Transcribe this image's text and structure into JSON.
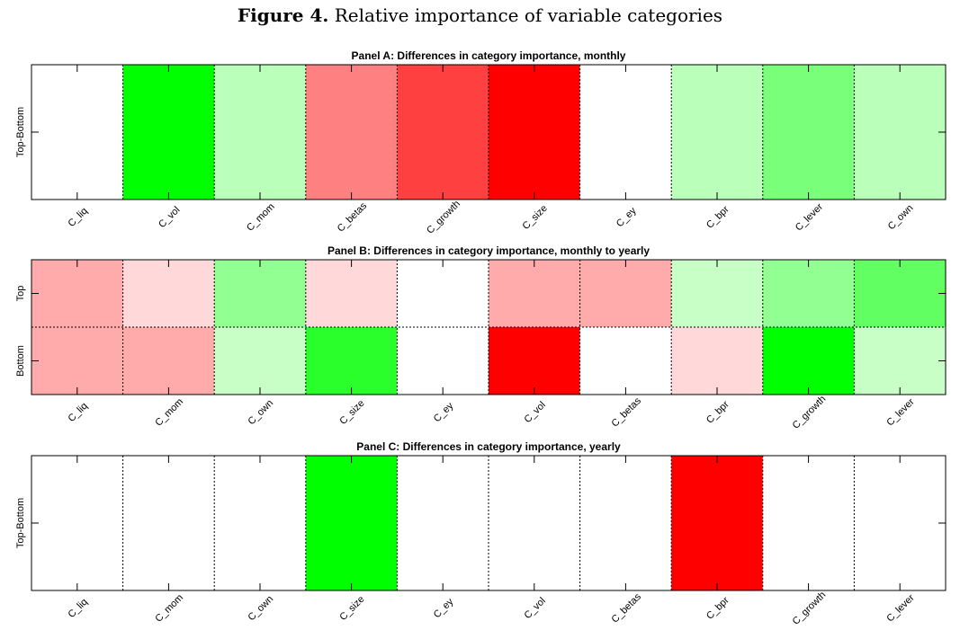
{
  "figure": {
    "label": "Figure 4.",
    "title": "Relative importance of variable categories"
  },
  "chart_data": [
    {
      "type": "heatmap",
      "title": "Panel A: Differences in category importance, monthly",
      "rows": [
        "Top-Bottom"
      ],
      "categories": [
        "C_liq",
        "C_vol",
        "C_mom",
        "C_betas",
        "C_growth",
        "C_size",
        "C_ey",
        "C_bpr",
        "C_lever",
        "C_own"
      ],
      "values": [
        [
          0,
          1.0,
          0.27,
          -0.5,
          -0.75,
          -1.0,
          0,
          0.27,
          0.52,
          0.27
        ]
      ]
    },
    {
      "type": "heatmap",
      "title": "Panel B: Differences in category importance, monthly to yearly",
      "rows": [
        "Top",
        "Bottom"
      ],
      "categories": [
        "C_liq",
        "C_mom",
        "C_own",
        "C_size",
        "C_ey",
        "C_vol",
        "C_betas",
        "C_bpr",
        "C_growth",
        "C_lever"
      ],
      "values": [
        [
          -0.33,
          -0.15,
          0.43,
          -0.15,
          0,
          -0.33,
          -0.33,
          0.22,
          0.43,
          0.62
        ],
        [
          -0.33,
          -0.33,
          0.22,
          0.83,
          0,
          -1.0,
          0,
          -0.15,
          1.0,
          0.22
        ]
      ]
    },
    {
      "type": "heatmap",
      "title": "Panel C: Differences in category importance, yearly",
      "rows": [
        "Top-Bottom"
      ],
      "categories": [
        "C_liq",
        "C_mom",
        "C_own",
        "C_size",
        "C_ey",
        "C_vol",
        "C_betas",
        "C_bpr",
        "C_growth",
        "C_lever"
      ],
      "values": [
        [
          0,
          0,
          0,
          1.0,
          0,
          0,
          0,
          -1.0,
          0,
          0
        ]
      ]
    }
  ]
}
